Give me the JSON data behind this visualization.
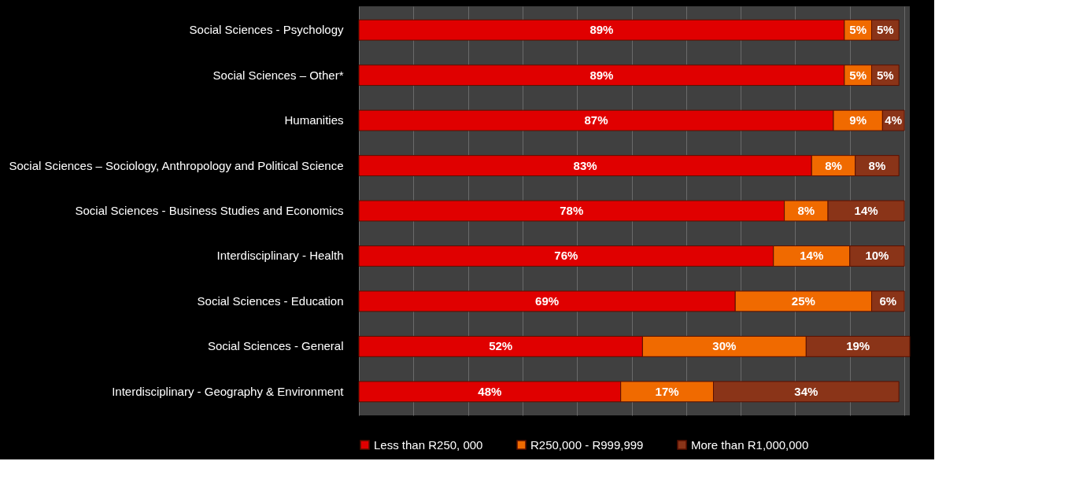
{
  "chart_data": {
    "type": "bar",
    "orientation": "horizontal",
    "stacked": true,
    "categories": [
      "Social Sciences - Psychology",
      "Social Sciences – Other*",
      "Humanities",
      "Social Sciences – Sociology, Anthropology and Political Science",
      "Social Sciences - Business Studies and Economics",
      "Interdisciplinary - Health",
      "Social Sciences - Education",
      "Social Sciences - General",
      "Interdisciplinary - Geography & Environment"
    ],
    "series": [
      {
        "name": "Less than R250, 000",
        "color": "#e00000",
        "values": [
          89,
          89,
          87,
          83,
          78,
          76,
          69,
          52,
          48
        ],
        "value_labels": [
          "89%",
          "89%",
          "87%",
          "83%",
          "78%",
          "76%",
          "69%",
          "52%",
          "48%"
        ]
      },
      {
        "name": "R250,000 - R999,999",
        "color": "#f06a00",
        "values": [
          5,
          5,
          9,
          8,
          8,
          14,
          25,
          30,
          17
        ],
        "value_labels": [
          "5%",
          "5%",
          "9%",
          "8%",
          "8%",
          "14%",
          "25%",
          "30%",
          "17%"
        ]
      },
      {
        "name": "More than R1,000,000",
        "color": "#8a3418",
        "values": [
          5,
          5,
          4,
          8,
          14,
          10,
          6,
          19,
          34
        ],
        "value_labels": [
          "5%",
          "5%",
          "4%",
          "8%",
          "14%",
          "10%",
          "6%",
          "19%",
          "34%"
        ]
      }
    ],
    "grid": "x",
    "legend": "bottom",
    "tick_labels": "y"
  }
}
